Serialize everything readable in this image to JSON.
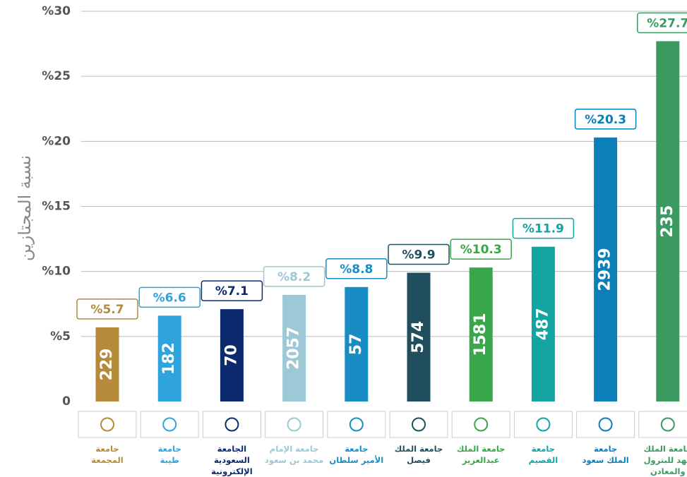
{
  "chart_data": {
    "type": "bar",
    "y_label": "نسبة المجتازين",
    "categories": [
      "جامعة\nالمجمعة",
      "جامعة\nطيبة",
      "الجامعة\nالسعودية\nالإلكترونية",
      "جامعة الإمام\nمحمد بن سعود",
      "جامعة\nالأمير سلطان",
      "جامعة الملك\nفيصل",
      "جامعة الملك\nعبدالعزيز",
      "جامعة\nالقصيم",
      "جامعة\nالملك سعود",
      "جامعة الملك\nفهد للبترول\nوالمعادن"
    ],
    "values": [
      5.7,
      6.6,
      7.1,
      8.2,
      8.8,
      9.9,
      10.3,
      11.9,
      20.3,
      27.7
    ],
    "value_labels": [
      "%5.7",
      "%6.6",
      "%7.1",
      "%8.2",
      "%8.8",
      "%9.9",
      "%10.3",
      "%11.9",
      "%20.3",
      "%27.7"
    ],
    "counts": [
      229,
      182,
      70,
      2057,
      57,
      574,
      1581,
      487,
      2939,
      235
    ],
    "colors": [
      "#b58a3a",
      "#2ea3dc",
      "#0c2a6e",
      "#9dc8d6",
      "#1a8cc4",
      "#1f4e5e",
      "#3aa64a",
      "#13a3a1",
      "#0a7fb8",
      "#3a9a5f"
    ],
    "ylim": [
      0,
      30
    ],
    "yticks": [
      {
        "value": 0,
        "label": "0"
      },
      {
        "value": 5,
        "label": "%5"
      },
      {
        "value": 10,
        "label": "%10"
      },
      {
        "value": 15,
        "label": "%15"
      },
      {
        "value": 20,
        "label": "%20"
      },
      {
        "value": 25,
        "label": "%25"
      },
      {
        "value": 30,
        "label": "%30"
      }
    ],
    "grid": true
  }
}
